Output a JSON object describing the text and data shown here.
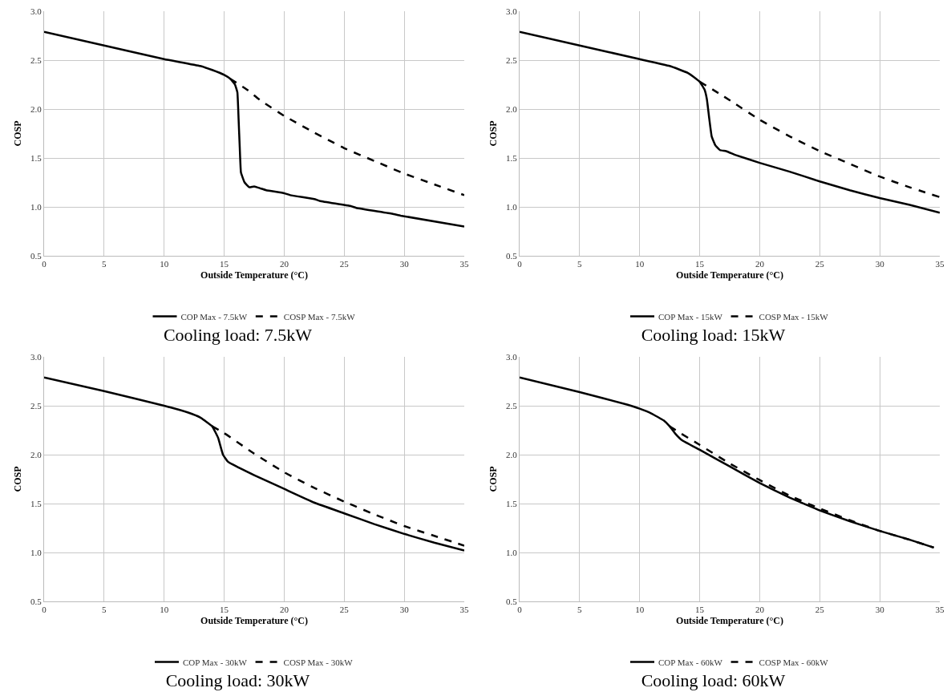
{
  "chart_data": [
    {
      "type": "line",
      "title": "Cooling load: 7.5kW",
      "xlabel": "Outside Temperature (°C)",
      "ylabel": "COSP",
      "xlim": [
        0,
        35
      ],
      "xticks": [
        0,
        5,
        10,
        15,
        20,
        25,
        30,
        35
      ],
      "ylim": [
        0.5,
        3
      ],
      "yticks": [
        {
          "value": 0.5,
          "label": "0.5"
        },
        {
          "value": 1,
          "label": "1.0"
        },
        {
          "value": 1.5,
          "label": "1.5"
        },
        {
          "value": 2,
          "label": "2.0"
        },
        {
          "value": 2.5,
          "label": "2.5"
        },
        {
          "value": 3,
          "label": "3.0"
        }
      ],
      "grid": true,
      "legend": "bottom",
      "marker": "none",
      "series": [
        {
          "name": "COP Max - 7.5kW",
          "color": "#000000",
          "line_style": "solid",
          "x": [
            0,
            5,
            10,
            13,
            14,
            15,
            15.5,
            15.9,
            16.1,
            16.2,
            16.3,
            16.4,
            16.7,
            17.1,
            17.5,
            18,
            18.5,
            20,
            20.5,
            22.5,
            23,
            25.5,
            26,
            29,
            29.7,
            35
          ],
          "values": [
            2.79,
            2.65,
            2.51,
            2.44,
            2.4,
            2.35,
            2.31,
            2.25,
            2.17,
            1.9,
            1.6,
            1.35,
            1.25,
            1.2,
            1.21,
            1.19,
            1.17,
            1.14,
            1.12,
            1.08,
            1.06,
            1.01,
            0.99,
            0.93,
            0.91,
            0.8
          ]
        },
        {
          "name": "COSP Max - 7.5kW",
          "color": "#000000",
          "line_style": "dashed",
          "x": [
            15.5,
            17,
            18,
            20,
            22.5,
            25,
            27.5,
            30,
            32.5,
            35
          ],
          "values": [
            2.31,
            2.19,
            2.09,
            1.93,
            1.76,
            1.6,
            1.47,
            1.34,
            1.23,
            1.12
          ]
        }
      ]
    },
    {
      "type": "line",
      "title": "Cooling load: 15kW",
      "xlabel": "Outside Temperature (°C)",
      "ylabel": "COSP",
      "xlim": [
        0,
        35
      ],
      "xticks": [
        0,
        5,
        10,
        15,
        20,
        25,
        30,
        35
      ],
      "ylim": [
        0.5,
        3
      ],
      "yticks": [
        {
          "value": 0.5,
          "label": "0.5"
        },
        {
          "value": 1,
          "label": "1.0"
        },
        {
          "value": 1.5,
          "label": "1.5"
        },
        {
          "value": 2,
          "label": "2.0"
        },
        {
          "value": 2.5,
          "label": "2.5"
        },
        {
          "value": 3,
          "label": "3.0"
        }
      ],
      "grid": true,
      "legend": "bottom",
      "marker": "none",
      "series": [
        {
          "name": "COP Max - 15kW",
          "color": "#000000",
          "line_style": "solid",
          "x": [
            0,
            5,
            10,
            12.5,
            14,
            14.7,
            15,
            15.4,
            15.6,
            15.8,
            16,
            16.3,
            16.7,
            17.2,
            18,
            20,
            22.5,
            25,
            27.5,
            30,
            32.5,
            35
          ],
          "values": [
            2.79,
            2.65,
            2.51,
            2.44,
            2.37,
            2.31,
            2.28,
            2.2,
            2.1,
            1.9,
            1.72,
            1.63,
            1.58,
            1.57,
            1.53,
            1.45,
            1.36,
            1.26,
            1.17,
            1.09,
            1.02,
            0.94
          ]
        },
        {
          "name": "COSP Max - 15kW",
          "color": "#000000",
          "line_style": "dashed",
          "x": [
            15,
            17,
            18,
            20,
            22.5,
            25,
            27.5,
            30,
            32.5,
            35
          ],
          "values": [
            2.28,
            2.13,
            2.05,
            1.89,
            1.72,
            1.57,
            1.44,
            1.31,
            1.2,
            1.1
          ]
        }
      ]
    },
    {
      "type": "line",
      "title": "Cooling load: 30kW",
      "xlabel": "Outside Temperature (°C)",
      "ylabel": "COSP",
      "xlim": [
        0,
        35
      ],
      "xticks": [
        0,
        5,
        10,
        15,
        20,
        25,
        30,
        35
      ],
      "ylim": [
        0.5,
        3
      ],
      "yticks": [
        {
          "value": 0.5,
          "label": "0.5"
        },
        {
          "value": 1,
          "label": "1.0"
        },
        {
          "value": 1.5,
          "label": "1.5"
        },
        {
          "value": 2,
          "label": "2.0"
        },
        {
          "value": 2.5,
          "label": "2.5"
        },
        {
          "value": 3,
          "label": "3.0"
        }
      ],
      "grid": true,
      "legend": "bottom",
      "marker": "none",
      "series": [
        {
          "name": "COP Max - 30kW",
          "color": "#000000",
          "line_style": "solid",
          "x": [
            0,
            5,
            10,
            12,
            13,
            14,
            14.5,
            14.9,
            15.3,
            15.7,
            17.5,
            20,
            22.5,
            25,
            27.5,
            30,
            32.5,
            35
          ],
          "values": [
            2.79,
            2.65,
            2.5,
            2.43,
            2.38,
            2.29,
            2.17,
            2.0,
            1.93,
            1.9,
            1.79,
            1.65,
            1.51,
            1.4,
            1.29,
            1.19,
            1.1,
            1.02
          ]
        },
        {
          "name": "COSP Max - 30kW",
          "color": "#000000",
          "line_style": "dashed",
          "x": [
            14,
            15,
            17.5,
            20,
            22.5,
            25,
            27.5,
            30,
            32.5,
            35
          ],
          "values": [
            2.29,
            2.22,
            2.01,
            1.82,
            1.66,
            1.52,
            1.39,
            1.27,
            1.17,
            1.07
          ]
        }
      ]
    },
    {
      "type": "line",
      "title": "Cooling load: 60kW",
      "xlabel": "Outside Temperature (°C)",
      "ylabel": "COSP",
      "xlim": [
        0,
        35
      ],
      "xticks": [
        0,
        5,
        10,
        15,
        20,
        25,
        30,
        35
      ],
      "ylim": [
        0.5,
        3
      ],
      "yticks": [
        {
          "value": 0.5,
          "label": "0.5"
        },
        {
          "value": 1,
          "label": "1.0"
        },
        {
          "value": 1.5,
          "label": "1.5"
        },
        {
          "value": 2,
          "label": "2.0"
        },
        {
          "value": 2.5,
          "label": "2.5"
        },
        {
          "value": 3,
          "label": "3.0"
        }
      ],
      "grid": true,
      "legend": "bottom",
      "marker": "none",
      "series": [
        {
          "name": "COP Max - 60kW",
          "color": "#000000",
          "line_style": "solid",
          "x": [
            0,
            5,
            9,
            10,
            11,
            12,
            12.5,
            13,
            13.5,
            15,
            17.5,
            20,
            22.5,
            25,
            27.5,
            30,
            32.5,
            34.5
          ],
          "values": [
            2.79,
            2.64,
            2.51,
            2.47,
            2.42,
            2.35,
            2.29,
            2.21,
            2.15,
            2.05,
            1.88,
            1.71,
            1.56,
            1.43,
            1.32,
            1.22,
            1.13,
            1.05
          ]
        },
        {
          "name": "COSP Max - 60kW",
          "color": "#000000",
          "line_style": "dashed",
          "x": [
            12.5,
            13,
            15,
            17.5,
            20,
            22.5,
            25,
            27.5,
            30,
            32.5,
            34.5
          ],
          "values": [
            2.29,
            2.25,
            2.1,
            1.91,
            1.74,
            1.58,
            1.45,
            1.33,
            1.22,
            1.13,
            1.05
          ]
        }
      ]
    }
  ]
}
